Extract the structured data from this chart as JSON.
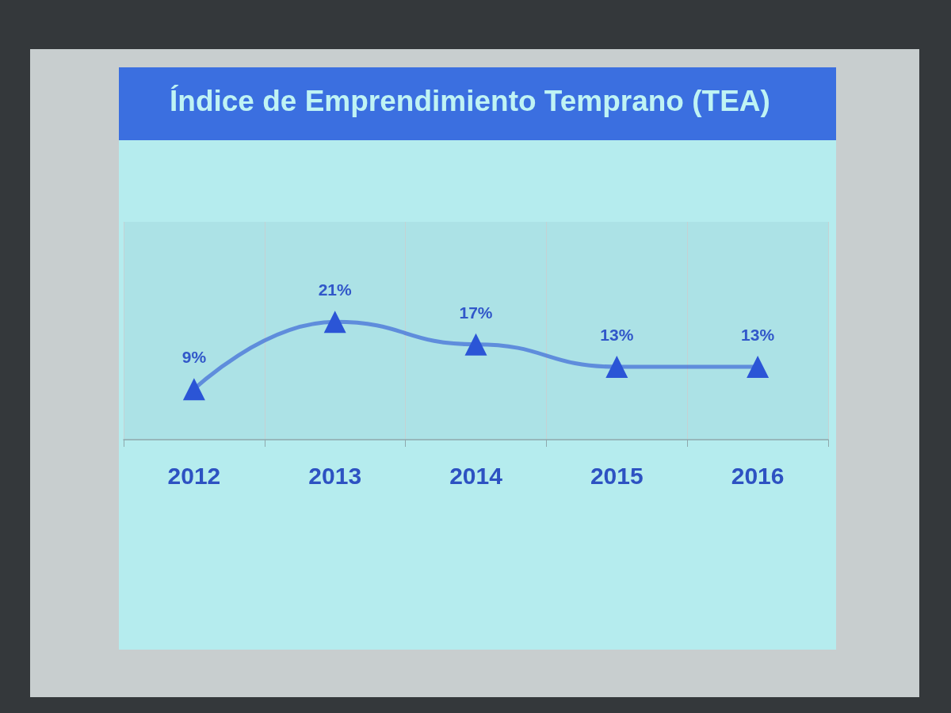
{
  "chart_data": {
    "type": "line",
    "title": "Índice de Emprendimiento Temprano (TEA)",
    "categories": [
      "2012",
      "2013",
      "2014",
      "2015",
      "2016"
    ],
    "values": [
      9,
      21,
      17,
      13,
      13
    ],
    "value_labels": [
      "9%",
      "21%",
      "17%",
      "13%",
      "13%"
    ],
    "color": "#2b55d6",
    "grid": "x",
    "marker": "triangle",
    "line_style": "solid"
  }
}
